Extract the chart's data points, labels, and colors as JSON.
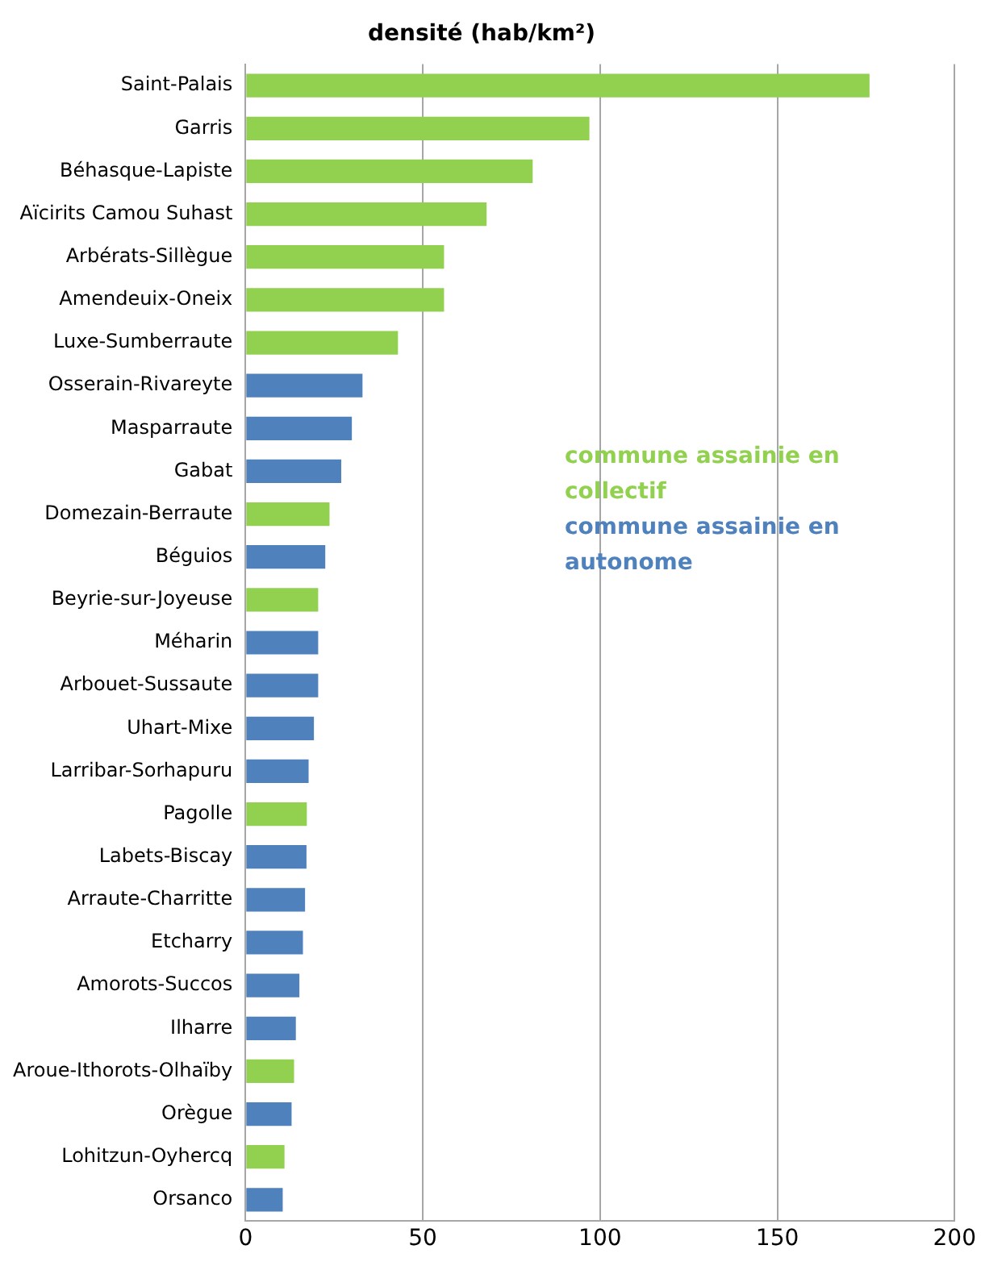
{
  "chart_data": {
    "type": "bar",
    "orientation": "horizontal",
    "stacked": true,
    "title": "densité (hab/km²)",
    "categories": [
      "Saint-Palais",
      "Garris",
      "Béhasque-Lapiste",
      "Aïcirits Camou Suhast",
      "Arbérats-Sillègue",
      "Amendeuix-Oneix",
      "Luxe-Sumberraute",
      "Osserain-Rivareyte",
      "Masparraute",
      "Gabat",
      "Domezain-Berraute",
      "Béguios",
      "Beyrie-sur-Joyeuse",
      "Méharin",
      "Arbouet-Sussaute",
      "Uhart-Mixe",
      "Larribar-Sorhapuru",
      "Pagolle",
      "Labets-Biscay",
      "Arraute-Charritte",
      "Etcharry",
      "Amorots-Succos",
      "Ilharre",
      "Aroue-Ithorots-Olhaïby",
      "Orègue",
      "Lohitzun-Oyhercq",
      "Orsanco"
    ],
    "series": [
      {
        "name": "commune assainie  en collectif",
        "color": "#92d050",
        "values": [
          176,
          97,
          81,
          68,
          56,
          56,
          43,
          null,
          null,
          null,
          23.7,
          null,
          20.5,
          null,
          null,
          null,
          null,
          17.3,
          null,
          null,
          null,
          null,
          null,
          13.7,
          null,
          11,
          null
        ]
      },
      {
        "name": "commune assainie en autonome",
        "color": "#4f81bd",
        "values": [
          null,
          null,
          null,
          null,
          null,
          null,
          null,
          33,
          30,
          27,
          null,
          22.5,
          null,
          20.5,
          20.5,
          19.3,
          17.8,
          null,
          17.2,
          16.8,
          16.2,
          15.2,
          14.2,
          null,
          13,
          null,
          10.5
        ]
      }
    ],
    "xlim": [
      0,
      200
    ],
    "xticks": [
      0,
      50,
      100,
      150,
      200
    ],
    "grid": "x",
    "legend": "right"
  }
}
